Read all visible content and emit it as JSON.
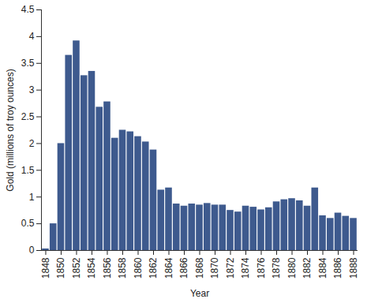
{
  "chart_data": {
    "type": "bar",
    "x_label": "Year",
    "y_label": "Gold (millions of troy ounces)",
    "categories": [
      "1848",
      null,
      "1850",
      null,
      "1852",
      null,
      "1854",
      null,
      "1856",
      null,
      "1858",
      null,
      "1860",
      null,
      "1862",
      null,
      "1864",
      null,
      "1866",
      null,
      "1868",
      null,
      "1870",
      null,
      "1872",
      null,
      "1874",
      null,
      "1876",
      null,
      "1878",
      null,
      "1880",
      null,
      "1882",
      null,
      "1884",
      null,
      "1886",
      null,
      "1888"
    ],
    "values": [
      0.03,
      0.5,
      2.0,
      3.65,
      3.92,
      3.27,
      3.35,
      2.68,
      2.78,
      2.1,
      2.25,
      2.22,
      2.13,
      2.03,
      1.88,
      1.13,
      1.17,
      0.87,
      0.83,
      0.87,
      0.85,
      0.88,
      0.85,
      0.85,
      0.75,
      0.72,
      0.83,
      0.81,
      0.76,
      0.8,
      0.91,
      0.95,
      0.97,
      0.93,
      0.83,
      1.17,
      0.65,
      0.6,
      0.7,
      0.64,
      0.6
    ],
    "color": "#3e5a8e",
    "ylim": [
      0,
      4.5
    ],
    "yticks": [
      0,
      0.5,
      1,
      1.5,
      2,
      2.5,
      3,
      3.5,
      4,
      4.5
    ],
    "grid": false
  }
}
